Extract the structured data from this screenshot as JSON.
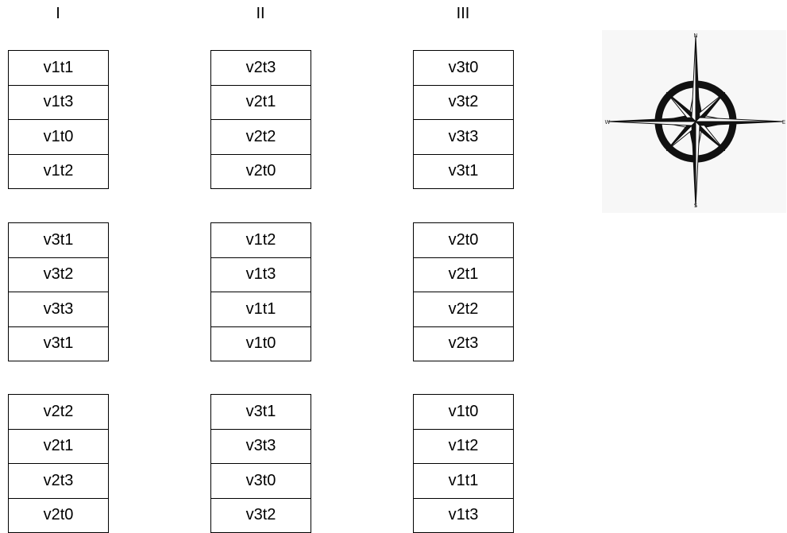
{
  "columns": [
    "I",
    "II",
    "III"
  ],
  "groups": [
    [
      [
        "v1t1",
        "v1t3",
        "v1t0",
        "v1t2"
      ],
      [
        "v2t3",
        "v2t1",
        "v2t2",
        "v2t0"
      ],
      [
        "v3t0",
        "v3t2",
        "v3t3",
        "v3t1"
      ]
    ],
    [
      [
        "v3t1",
        "v3t2",
        "v3t3",
        "v3t1"
      ],
      [
        "v1t2",
        "v1t3",
        "v1t1",
        "v1t0"
      ],
      [
        "v2t0",
        "v2t1",
        "v2t2",
        "v2t3"
      ]
    ],
    [
      [
        "v2t2",
        "v2t1",
        "v2t3",
        "v2t0"
      ],
      [
        "v3t1",
        "v3t3",
        "v3t0",
        "v3t2"
      ],
      [
        "v1t0",
        "v1t2",
        "v1t1",
        "v1t3"
      ]
    ]
  ],
  "compass": {
    "north": "N",
    "west": "W",
    "east": "E",
    "south": "S"
  }
}
